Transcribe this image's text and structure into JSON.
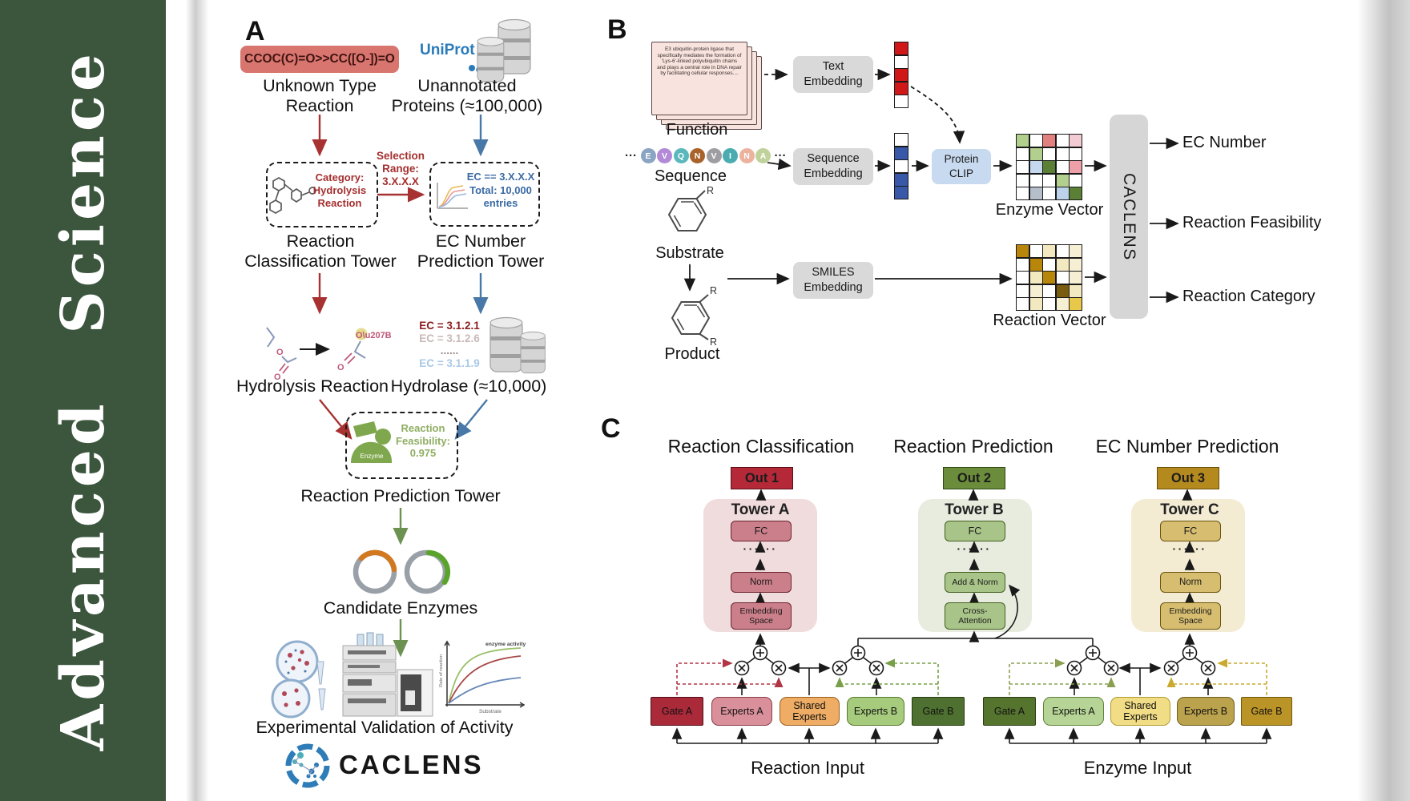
{
  "sidebar": {
    "text": "Advanced Science",
    "bg": "#3c563e",
    "text_color": "#ffffff"
  },
  "panelA": {
    "label": "A",
    "smiles": "CCOC(C)=O>>CC([O-])=O",
    "smiles_bg": "#d9756f",
    "unknown_reaction_label": "Unknown Type\nReaction",
    "uniprot": "UniProt",
    "unannotated_label": "Unannotated\nProteins (≈100,000)",
    "classification_box_text": "Category:\nHydrolysis\nReaction",
    "selection_range": "Selection\nRange:\n3.X.X.X",
    "ec_box_text": "EC == 3.X.X.X\nTotal: 10,000\nentries",
    "classification_tower_label": "Reaction\nClassification Tower",
    "ec_tower_label": "EC Number\nPrediction Tower",
    "hydrolysis_label": "Hydrolysis Reaction",
    "hydrolase_label": "Hydrolase (≈10,000)",
    "ec_list": [
      {
        "text": "EC = 3.1.2.1",
        "color": "#8b1d1d",
        "bold": true
      },
      {
        "text": "EC = 3.1.2.6",
        "color": "#c9b8b8",
        "bold": false
      },
      {
        "text": "......",
        "color": "#9a8f8f",
        "bold": false
      },
      {
        "text": "EC = 3.1.1.9",
        "color": "#a9c8e6",
        "bold": false
      }
    ],
    "feasibility_box": {
      "enzyme": "Enzyme",
      "text": "Reaction\nFeasibility:\n0.975"
    },
    "prediction_tower_label": "Reaction Prediction Tower",
    "candidate_label": "Candidate Enzymes",
    "validation_label": "Experimental Validation of Activity",
    "graph": {
      "ylabel": "Rate of reaction",
      "xlabel": "Substrate",
      "annotation": "enzyme activity"
    },
    "logo_text": "CACLENS",
    "arrow_colors": {
      "red": "#a83232",
      "blue": "#4878a8",
      "green": "#6d9150"
    }
  },
  "panelB": {
    "label": "B",
    "function_card_text": "E3 ubiquitin-protein ligase that specifically mediates the formation of 'Lys-6'-linked polyubiquitin chains and plays a central role in DNA repair by facilitating cellular responses....",
    "function_label": "Function",
    "sequence_label": "Sequence",
    "substrate_label": "Substrate",
    "product_label": "Product",
    "r_label": "R",
    "ellipsis": "···",
    "sequence_residues": [
      {
        "letter": "E",
        "color": "#8aa4c2"
      },
      {
        "letter": "V",
        "color": "#b28ad8"
      },
      {
        "letter": "Q",
        "color": "#5ab8bc"
      },
      {
        "letter": "N",
        "color": "#a8622a"
      },
      {
        "letter": "V",
        "color": "#9e9ea2"
      },
      {
        "letter": "I",
        "color": "#4aacb0"
      },
      {
        "letter": "N",
        "color": "#ecb29e"
      },
      {
        "letter": "A",
        "color": "#c0d29c"
      }
    ],
    "text_embedding": "Text\nEmbedding",
    "sequence_embedding": "Sequence\nEmbedding",
    "smiles_embedding": "SMILES\nEmbedding",
    "protein_clip": "Protein\nCLIP",
    "text_vector": [
      "#d01818",
      "#ffffff",
      "#d01818",
      "#d01818",
      "#ffffff"
    ],
    "sequence_vector": [
      "#ffffff",
      "#3858a8",
      "#ffffff",
      "#3858a8",
      "#3858a8"
    ],
    "enzyme_vector_label": "Enzyme Vector",
    "reaction_vector_label": "Reaction Vector",
    "enzyme_vector_grid": [
      [
        "#b2cf8e",
        "#ffffff",
        "#e28080",
        "#ffffff",
        "#f2ccd2"
      ],
      [
        "#ffffff",
        "#b2cf8e",
        "#ffffff",
        "#ffffff",
        "#ffffff"
      ],
      [
        "#ffffff",
        "#c6d8ee",
        "#5a7f35",
        "#ffffff",
        "#eda0a8"
      ],
      [
        "#ffffff",
        "#ffffff",
        "#ffffff",
        "#b2cf8e",
        "#ffffff"
      ],
      [
        "#ffffff",
        "#b5bfcc",
        "#ffffff",
        "#bcd2ea",
        "#5a7f35"
      ]
    ],
    "reaction_vector_grid": [
      [
        "#b8860b",
        "#ffffff",
        "#f3e9c0",
        "#ffffff",
        "#f6efd4"
      ],
      [
        "#ffffff",
        "#b8860b",
        "#ffffff",
        "#f3e9c0",
        "#f6efd4"
      ],
      [
        "#ffffff",
        "#f3e9c0",
        "#b8860b",
        "#ffffff",
        "#f6efd4"
      ],
      [
        "#ffffff",
        "#f6efd4",
        "#ffffff",
        "#7a5c10",
        "#f3e9c0"
      ],
      [
        "#ffffff",
        "#f3e9c0",
        "#ffffff",
        "#f6efd4",
        "#e8c84a"
      ]
    ],
    "caclens_label": "CACLENS",
    "outputs": [
      "EC Number",
      "Reaction Feasibility",
      "Reaction Category"
    ]
  },
  "panelC": {
    "label": "C",
    "dots": "······",
    "columns": [
      {
        "title": "Reaction Classification",
        "out_label": "Out 1",
        "out_bg": "#b42838",
        "out_border": "#5a0f18",
        "tower_name": "Tower A",
        "tower_bg": "#f1dcdd",
        "block_bg": "#cb7f8b",
        "block_border": "#6b2530",
        "blocks": [
          "FC",
          "Norm",
          "Embedding\nSpace"
        ]
      },
      {
        "title": "Reaction Prediction",
        "out_label": "Out 2",
        "out_bg": "#6b8c3a",
        "out_border": "#2f4a12",
        "tower_name": "Tower B",
        "tower_bg": "#e7ecde",
        "block_bg": "#a9c489",
        "block_border": "#42601f",
        "blocks": [
          "FC",
          "Add & Norm",
          "Cross-\nAttention"
        ]
      },
      {
        "title": "EC Number Prediction",
        "out_label": "Out 3",
        "out_bg": "#b48a1e",
        "out_border": "#6a4f08",
        "tower_name": "Tower C",
        "tower_bg": "#f3ecd3",
        "block_bg": "#d6bd6f",
        "block_border": "#6b540e",
        "blocks": [
          "FC",
          "Norm",
          "Embedding\nSpace"
        ]
      }
    ],
    "moe_left": {
      "input_label": "Reaction Input",
      "boxes": [
        {
          "label": "Gate A",
          "bg": "#aa2a3a",
          "border": "#4f0d16"
        },
        {
          "label": "Experts A",
          "bg": "#d9909a",
          "border": "#8a3d48"
        },
        {
          "label": "Shared\nExperts",
          "bg": "#eeac64",
          "border": "#9a5f1e"
        },
        {
          "label": "Experts B",
          "bg": "#a6cb7d",
          "border": "#567a2a"
        },
        {
          "label": "Gate B",
          "bg": "#4e7030",
          "border": "#233c0d"
        }
      ]
    },
    "moe_right": {
      "input_label": "Enzyme Input",
      "boxes": [
        {
          "label": "Gate A",
          "bg": "#55742e",
          "border": "#2a3d12"
        },
        {
          "label": "Experts A",
          "bg": "#b5d495",
          "border": "#5f8438"
        },
        {
          "label": "Shared\nExperts",
          "bg": "#f1dd86",
          "border": "#b09a30"
        },
        {
          "label": "Experts B",
          "bg": "#bba24d",
          "border": "#6f5d1a"
        },
        {
          "label": "Gate B",
          "bg": "#bb9428",
          "border": "#6f5708"
        }
      ]
    },
    "gate_line_colors": {
      "left_gate_a": "#b03545",
      "left_gate_b": "#78a048",
      "right_gate_a": "#8aa050",
      "right_gate_b": "#c9aa2e"
    }
  }
}
